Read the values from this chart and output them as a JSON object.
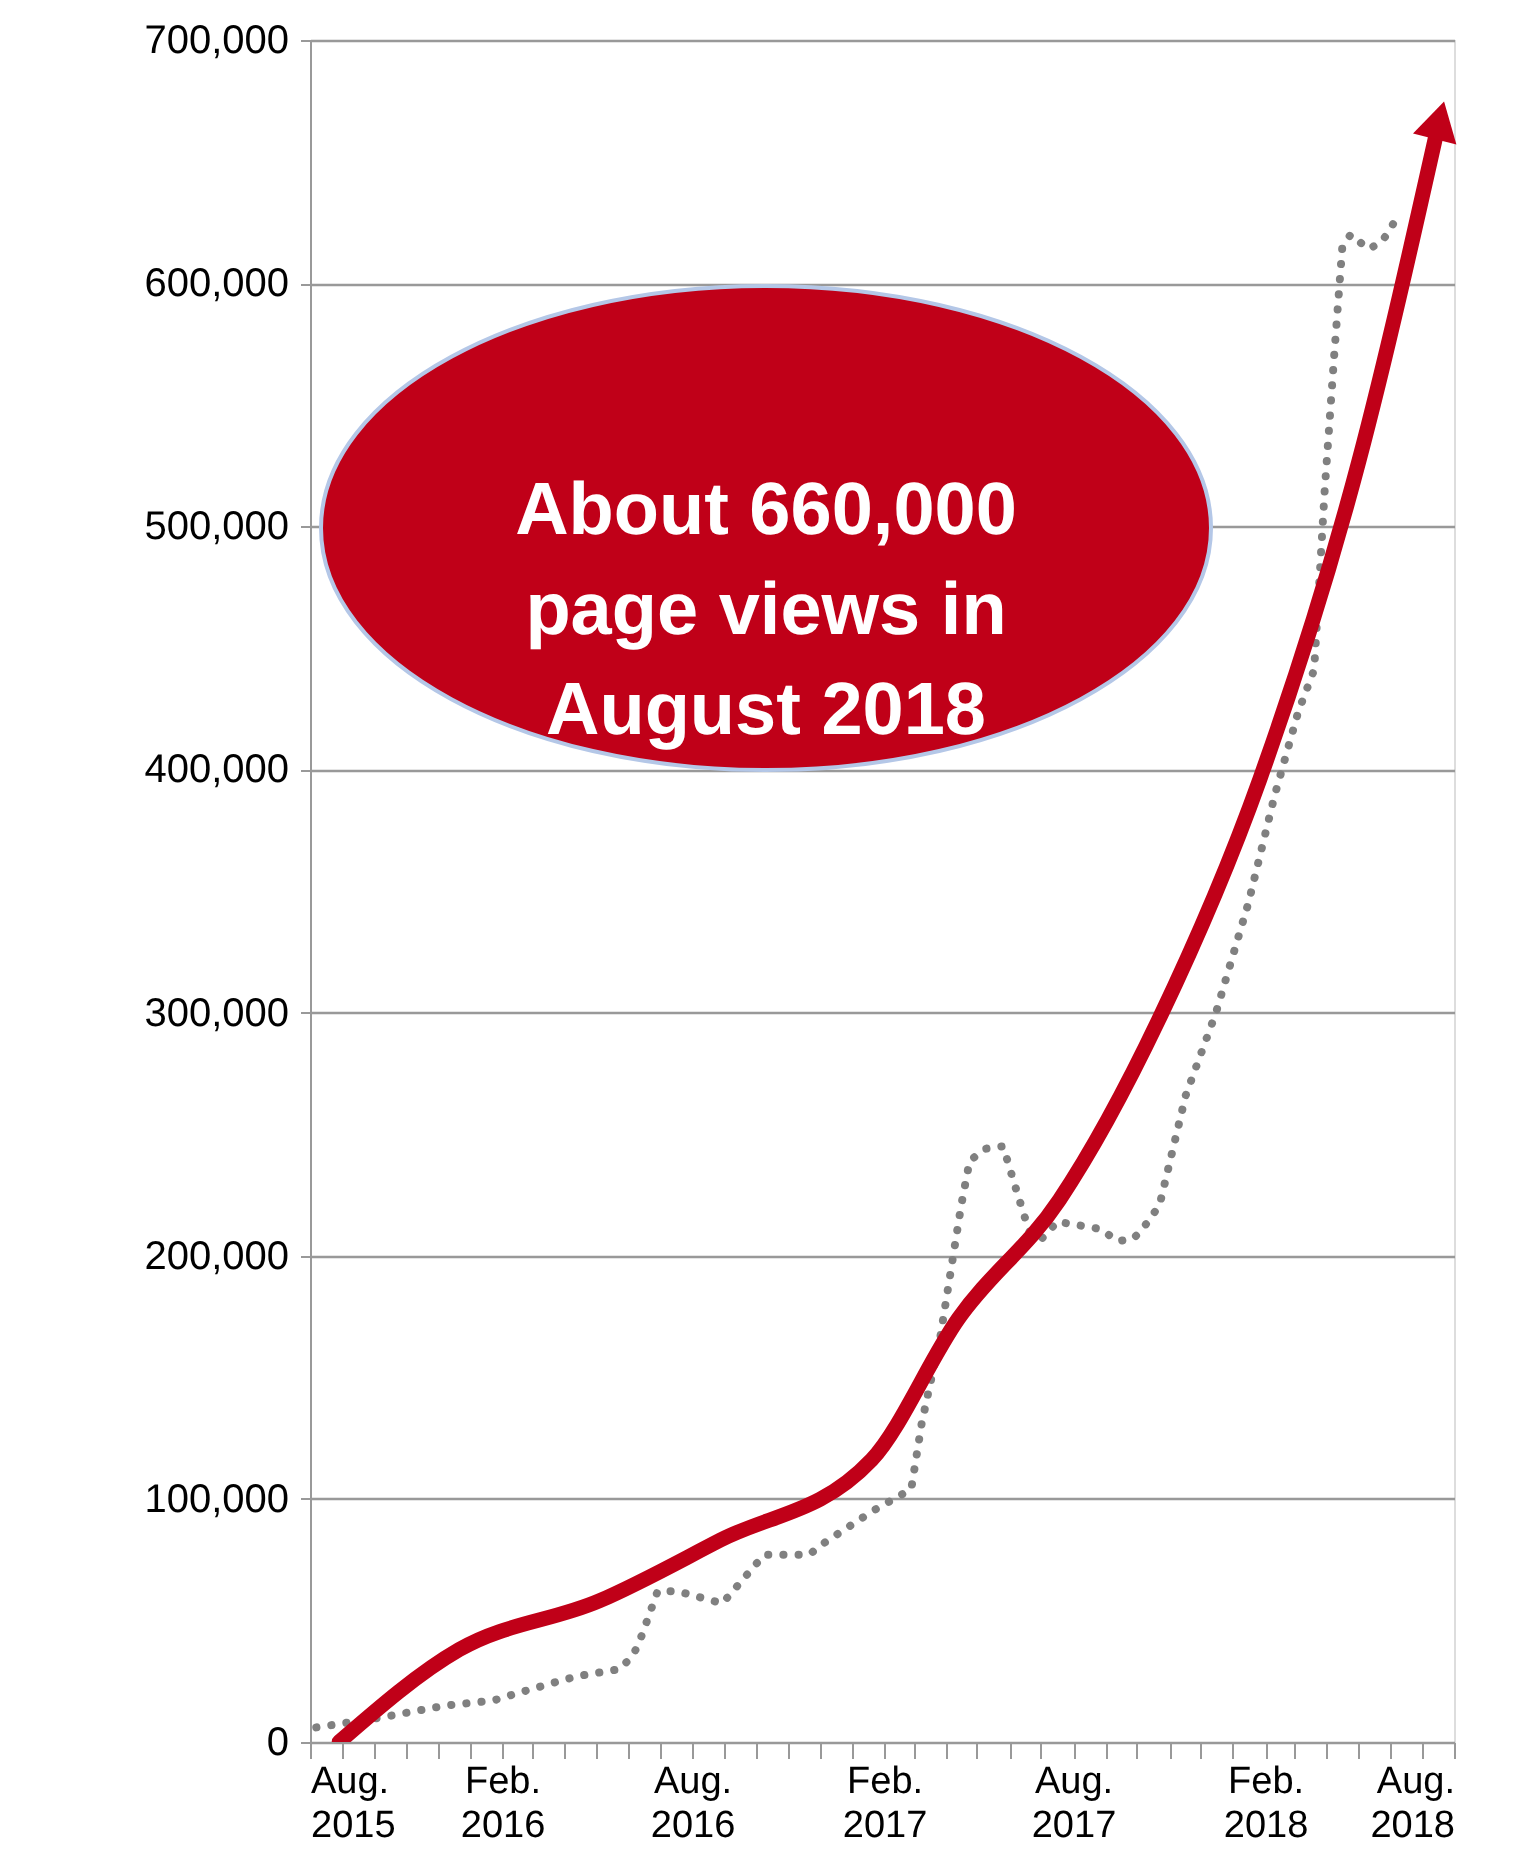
{
  "chart_data": {
    "type": "line",
    "xlim": [
      "2015-08-01",
      "2018-08-01"
    ],
    "xticks": [
      {
        "value": "2015-08-01",
        "label": "Aug.\n2015"
      },
      {
        "value": "2015-09-01",
        "label": null
      },
      {
        "value": "2015-10-01",
        "label": null
      },
      {
        "value": "2015-11-01",
        "label": null
      },
      {
        "value": "2015-12-01",
        "label": null
      },
      {
        "value": "2016-01-01",
        "label": null
      },
      {
        "value": "2016-02-01",
        "label": "Feb.\n2016"
      },
      {
        "value": "2016-03-01",
        "label": null
      },
      {
        "value": "2016-04-01",
        "label": null
      },
      {
        "value": "2016-05-01",
        "label": null
      },
      {
        "value": "2016-06-01",
        "label": null
      },
      {
        "value": "2016-07-01",
        "label": null
      },
      {
        "value": "2016-08-01",
        "label": "Aug.\n2016"
      },
      {
        "value": "2016-09-01",
        "label": null
      },
      {
        "value": "2016-10-01",
        "label": null
      },
      {
        "value": "2016-11-01",
        "label": null
      },
      {
        "value": "2016-12-01",
        "label": null
      },
      {
        "value": "2017-01-01",
        "label": null
      },
      {
        "value": "2017-02-01",
        "label": "Feb.\n2017"
      },
      {
        "value": "2017-03-01",
        "label": null
      },
      {
        "value": "2017-04-01",
        "label": null
      },
      {
        "value": "2017-05-01",
        "label": null
      },
      {
        "value": "2017-06-01",
        "label": null
      },
      {
        "value": "2017-07-01",
        "label": null
      },
      {
        "value": "2017-08-01",
        "label": "Aug.\n2017"
      },
      {
        "value": "2017-09-01",
        "label": null
      },
      {
        "value": "2017-10-01",
        "label": null
      },
      {
        "value": "2017-11-01",
        "label": null
      },
      {
        "value": "2017-12-01",
        "label": null
      },
      {
        "value": "2018-01-01",
        "label": null
      },
      {
        "value": "2018-02-01",
        "label": "Feb.\n2018"
      },
      {
        "value": "2018-03-01",
        "label": null
      },
      {
        "value": "2018-04-01",
        "label": null
      },
      {
        "value": "2018-05-01",
        "label": null
      },
      {
        "value": "2018-06-01",
        "label": null
      },
      {
        "value": "2018-07-01",
        "label": null
      },
      {
        "value": "2018-08-01",
        "label": "Aug.\n2018"
      }
    ],
    "ylim": [
      0,
      700000
    ],
    "yticks": [
      {
        "value": 0,
        "label": "0"
      },
      {
        "value": 100000,
        "label": "100,000"
      },
      {
        "value": 200000,
        "label": "200,000"
      },
      {
        "value": 300000,
        "label": "300,000"
      },
      {
        "value": 400000,
        "label": "400,000"
      },
      {
        "value": 500000,
        "label": "500,000"
      },
      {
        "value": 600000,
        "label": "600,000"
      },
      {
        "value": 700000,
        "label": "700,000"
      }
    ],
    "grid": "y",
    "legend": false,
    "annotations": [
      "About 660,000\npage views in\nAugust 2018"
    ],
    "series": [
      {
        "line_style": "dotted",
        "color": "#808080",
        "x": [
          "2015-08-07",
          "2015-10-07",
          "2015-12-09",
          "2016-01-23",
          "2016-03-02",
          "2016-04-12",
          "2016-05-24",
          "2016-06-06",
          "2016-06-14",
          "2016-06-29",
          "2016-07-18",
          "2016-08-30",
          "2016-10-09",
          "2016-11-21",
          "2016-12-06",
          "2017-01-21",
          "2017-02-27",
          "2017-03-09",
          "2017-03-27",
          "2017-04-16",
          "2017-04-24",
          "2017-05-09",
          "2017-05-26",
          "2017-06-07",
          "2017-06-20",
          "2017-07-02",
          "2017-07-17",
          "2017-08-27",
          "2017-09-13",
          "2017-09-28",
          "2017-10-12",
          "2017-10-23",
          "2017-11-02",
          "2017-11-17",
          "2017-12-16",
          "2018-01-16",
          "2018-02-10",
          "2018-03-05",
          "2018-03-20",
          "2018-03-24",
          "2018-03-30",
          "2018-04-08",
          "2018-04-16",
          "2018-04-24",
          "2018-05-11",
          "2018-05-24",
          "2018-06-09"
        ],
        "values": [
          6000,
          10000,
          15000,
          17000,
          22000,
          27000,
          30000,
          36000,
          44000,
          62000,
          62000,
          57000,
          77000,
          77000,
          82000,
          95000,
          104000,
          131000,
          167000,
          221000,
          239000,
          244000,
          245000,
          228000,
          210000,
          207000,
          214000,
          211000,
          206000,
          207000,
          214000,
          221000,
          239000,
          266000,
          300000,
          345000,
          389000,
          424000,
          441000,
          470000,
          514000,
          569000,
          615000,
          620000,
          614000,
          617000,
          628000
        ]
      },
      {
        "line_style": "solid",
        "color": "#c00018",
        "x": [
          "2015-08-29",
          "2015-12-22",
          "2016-05-04",
          "2016-08-28",
          "2017-01-20",
          "2017-04-13",
          "2017-07-19",
          "2017-10-22",
          "2018-01-27",
          "2018-05-02",
          "2018-07-18"
        ],
        "values": [
          0,
          38000,
          58000,
          83000,
          116000,
          174000,
          223000,
          297000,
          396000,
          527000,
          667000
        ]
      }
    ]
  }
}
